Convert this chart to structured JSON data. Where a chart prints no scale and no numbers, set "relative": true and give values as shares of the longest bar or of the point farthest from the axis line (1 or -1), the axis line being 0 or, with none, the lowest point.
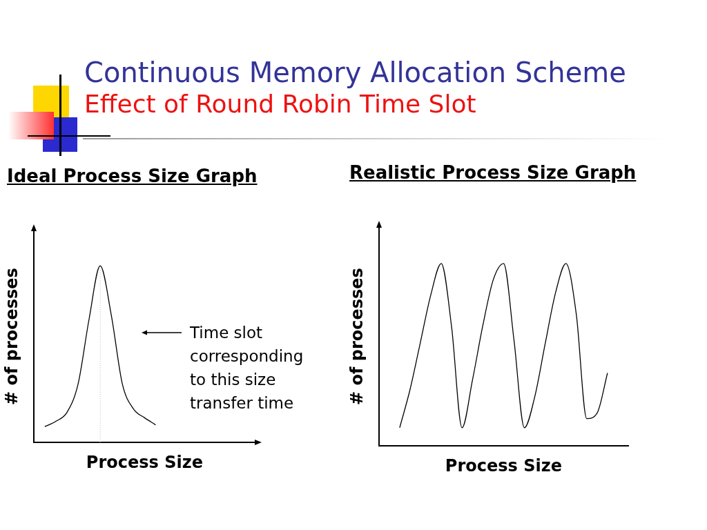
{
  "chart_data": [
    {
      "type": "other",
      "title": "Continuous Memory Allocation Scheme",
      "subtitle": "Effect of Round Robin Time Slot"
    },
    {
      "type": "line",
      "title": "Ideal Process Size Graph",
      "xlabel": "Process Size",
      "ylabel": "# of processes",
      "relative": true,
      "categories": [
        null,
        null,
        null,
        null,
        null,
        null,
        null,
        null,
        null,
        null,
        null,
        null,
        null,
        null,
        null,
        null,
        null,
        null,
        null,
        null,
        null
      ],
      "series": [
        {
          "color": "#000000",
          "values": [
            null,
            0.09,
            0.12,
            0.17,
            0.33,
            0.7,
            1.0,
            0.72,
            0.33,
            0.19,
            0.14,
            0.1,
            null,
            null,
            null,
            null,
            null,
            null,
            null,
            null,
            null
          ]
        }
      ],
      "annotations": [
        "Time slot corresponding to this size transfer time"
      ]
    },
    {
      "type": "line",
      "title": "Realistic Process Size Graph",
      "xlabel": "Process Size",
      "ylabel": "# of processes",
      "relative": true,
      "categories": [
        null,
        null,
        null,
        null,
        null,
        null,
        null,
        null,
        null,
        null,
        null,
        null,
        null,
        null,
        null,
        null,
        null,
        null,
        null,
        null,
        null,
        null,
        null,
        null,
        null
      ],
      "series": [
        {
          "color": "#000000",
          "values": [
            null,
            null,
            0.1,
            0.31,
            0.57,
            0.83,
            1.0,
            0.65,
            0.1,
            0.36,
            0.66,
            0.91,
            1.0,
            0.58,
            0.1,
            0.27,
            0.56,
            0.84,
            1.0,
            0.72,
            0.15,
            0.18,
            0.4,
            null,
            null
          ]
        }
      ]
    }
  ]
}
